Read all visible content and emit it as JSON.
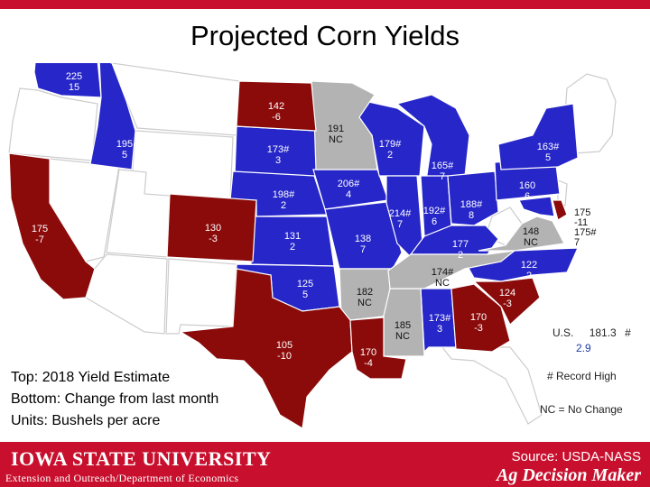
{
  "title": "Projected Corn Yields",
  "colors": {
    "record_or_up": "#2626c9",
    "decline": "#8b0a0a",
    "no_change": "#b3b3b3",
    "other_state": "#ffffff",
    "footer": "#c8102e"
  },
  "legend": {
    "line1": "Top: 2018 Yield Estimate",
    "line2": "Bottom: Change from last month",
    "line3": "Units: Bushels per acre"
  },
  "us_total": {
    "label": "U.S.",
    "value": "181.3",
    "mark": "#",
    "change": "2.9"
  },
  "record_note": "# Record High",
  "nc_note": "NC = No Change",
  "states": {
    "WA": {
      "yield": "225",
      "change": "15"
    },
    "ID": {
      "yield": "195",
      "change": "5"
    },
    "CA": {
      "yield": "175",
      "change": "-7"
    },
    "CO": {
      "yield": "130",
      "change": "-3"
    },
    "ND": {
      "yield": "142",
      "change": "-6"
    },
    "SD": {
      "yield": "173#",
      "change": "3"
    },
    "NE": {
      "yield": "198#",
      "change": "2"
    },
    "KS": {
      "yield": "131",
      "change": "2"
    },
    "OK": {
      "yield": "125",
      "change": "5"
    },
    "TX": {
      "yield": "105",
      "change": "-10"
    },
    "MN": {
      "yield": "191",
      "change": "NC"
    },
    "IA": {
      "yield": "206#",
      "change": "4"
    },
    "MO": {
      "yield": "138",
      "change": "7"
    },
    "AR": {
      "yield": "182",
      "change": "NC"
    },
    "LA": {
      "yield": "170",
      "change": "-4"
    },
    "WI": {
      "yield": "179#",
      "change": "2"
    },
    "IL": {
      "yield": "214#",
      "change": "7"
    },
    "MS": {
      "yield": "185",
      "change": "NC"
    },
    "MI": {
      "yield": "165#",
      "change": "7"
    },
    "IN": {
      "yield": "192#",
      "change": "6"
    },
    "OH": {
      "yield": "188#",
      "change": "8"
    },
    "KY": {
      "yield": "177",
      "change": "2"
    },
    "TN": {
      "yield": "174#",
      "change": "NC"
    },
    "AL": {
      "yield": "173#",
      "change": "3"
    },
    "GA": {
      "yield": "170",
      "change": "-3"
    },
    "SC": {
      "yield": "124",
      "change": "-3"
    },
    "NC": {
      "yield": "122",
      "change": "2"
    },
    "VA": {
      "yield": "148",
      "change": "NC"
    },
    "PA": {
      "yield": "160",
      "change": "6"
    },
    "NY": {
      "yield": "163#",
      "change": "5"
    },
    "DE": {
      "yield": "175",
      "change": "-11"
    },
    "MD": {
      "yield": "175#",
      "change": "7"
    }
  },
  "footer": {
    "university": "IOWA STATE UNIVERSITY",
    "department": "Extension and Outreach/Department of Economics",
    "source": "Source: USDA-NASS",
    "brand": "Ag Decision Maker"
  }
}
